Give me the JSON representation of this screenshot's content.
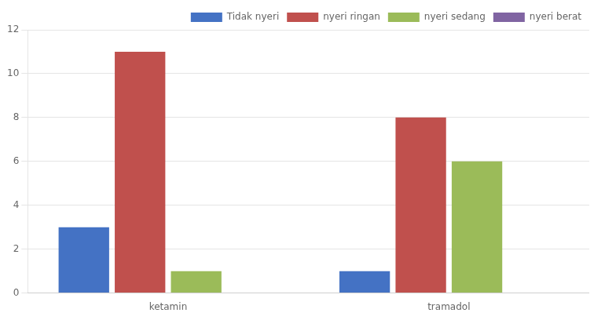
{
  "chart_data": {
    "type": "bar",
    "categories": [
      "ketamin",
      "tramadol"
    ],
    "series": [
      {
        "name": "Tidak nyeri",
        "color": "#4472C4",
        "values": [
          3,
          1
        ]
      },
      {
        "name": "nyeri ringan",
        "color": "#C0504D",
        "values": [
          11,
          8
        ]
      },
      {
        "name": "nyeri sedang",
        "color": "#9BBB59",
        "values": [
          1,
          6
        ]
      },
      {
        "name": "nyeri berat",
        "color": "#8064A2",
        "values": [
          0,
          0
        ]
      }
    ],
    "ylim": [
      0,
      12
    ],
    "yticks": [
      0,
      2,
      4,
      6,
      8,
      10,
      12
    ],
    "grid": true,
    "legend": "upper right"
  }
}
